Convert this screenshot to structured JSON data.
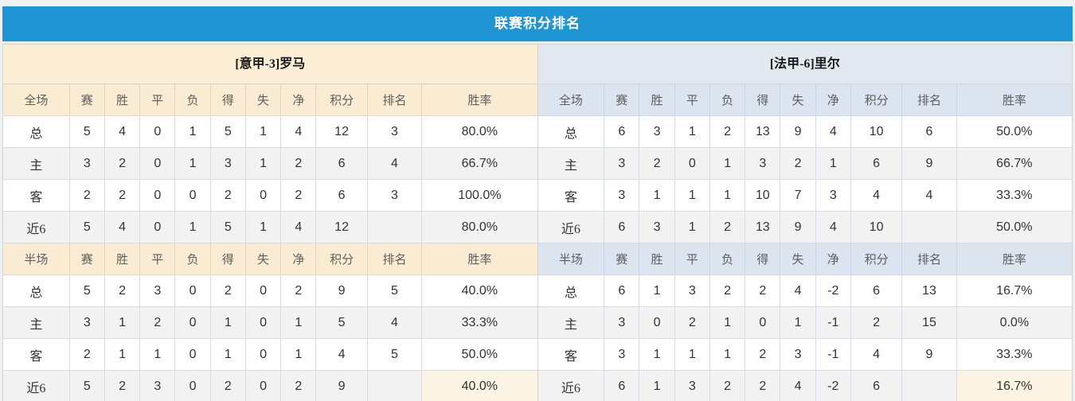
{
  "header": {
    "title": "联赛积分排名"
  },
  "columns": {
    "stats": [
      "赛",
      "胜",
      "平",
      "负",
      "得",
      "失",
      "净"
    ],
    "points": "积分",
    "rank": "排名",
    "rate": "胜率"
  },
  "teams": [
    {
      "name": "[意甲-3]罗马",
      "theme": "cream",
      "sections": [
        {
          "scope": "全场",
          "rows": [
            {
              "label": "总",
              "label_style": "dark",
              "stats": [
                5,
                4,
                0,
                1,
                5,
                1,
                4
              ],
              "points": 12,
              "rank": 3,
              "rate": "80.0%"
            },
            {
              "label": "主",
              "label_style": "red",
              "stats": [
                3,
                2,
                0,
                1,
                3,
                1,
                2
              ],
              "points": 6,
              "rank": 4,
              "rate": "66.7%"
            },
            {
              "label": "客",
              "label_style": "blue",
              "stats": [
                2,
                2,
                0,
                0,
                2,
                0,
                2
              ],
              "points": 6,
              "rank": 3,
              "rate": "100.0%"
            },
            {
              "label": "近6",
              "label_style": "dark",
              "stats": [
                5,
                4,
                0,
                1,
                5,
                1,
                4
              ],
              "points": 12,
              "rank": "",
              "rate": "80.0%"
            }
          ]
        },
        {
          "scope": "半场",
          "rows": [
            {
              "label": "总",
              "label_style": "dark",
              "stats": [
                5,
                2,
                3,
                0,
                2,
                0,
                2
              ],
              "points": 9,
              "rank": 5,
              "rate": "40.0%"
            },
            {
              "label": "主",
              "label_style": "red",
              "stats": [
                3,
                1,
                2,
                0,
                1,
                0,
                1
              ],
              "points": 5,
              "rank": 4,
              "rate": "33.3%"
            },
            {
              "label": "客",
              "label_style": "blue",
              "stats": [
                2,
                1,
                1,
                0,
                1,
                0,
                1
              ],
              "points": 4,
              "rank": 5,
              "rate": "50.0%"
            },
            {
              "label": "近6",
              "label_style": "dark",
              "stats": [
                5,
                2,
                3,
                0,
                2,
                0,
                2
              ],
              "points": 9,
              "rank": "",
              "rate": "40.0%"
            }
          ]
        }
      ]
    },
    {
      "name": "[法甲-6]里尔",
      "theme": "blue",
      "sections": [
        {
          "scope": "全场",
          "rows": [
            {
              "label": "总",
              "label_style": "dark",
              "stats": [
                6,
                3,
                1,
                2,
                13,
                9,
                4
              ],
              "points": 10,
              "rank": 6,
              "rate": "50.0%"
            },
            {
              "label": "主",
              "label_style": "red",
              "stats": [
                3,
                2,
                0,
                1,
                3,
                2,
                1
              ],
              "points": 6,
              "rank": 9,
              "rate": "66.7%"
            },
            {
              "label": "客",
              "label_style": "blue",
              "stats": [
                3,
                1,
                1,
                1,
                10,
                7,
                3
              ],
              "points": 4,
              "rank": 4,
              "rate": "33.3%"
            },
            {
              "label": "近6",
              "label_style": "dark",
              "stats": [
                6,
                3,
                1,
                2,
                13,
                9,
                4
              ],
              "points": 10,
              "rank": "",
              "rate": "50.0%"
            }
          ]
        },
        {
          "scope": "半场",
          "rows": [
            {
              "label": "总",
              "label_style": "dark",
              "stats": [
                6,
                1,
                3,
                2,
                2,
                4,
                -2
              ],
              "points": 6,
              "rank": 13,
              "rate": "16.7%"
            },
            {
              "label": "主",
              "label_style": "red",
              "stats": [
                3,
                0,
                2,
                1,
                0,
                1,
                -1
              ],
              "points": 2,
              "rank": 15,
              "rate": "0.0%"
            },
            {
              "label": "客",
              "label_style": "blue",
              "stats": [
                3,
                1,
                1,
                1,
                2,
                3,
                -1
              ],
              "points": 4,
              "rank": 9,
              "rate": "33.3%"
            },
            {
              "label": "近6",
              "label_style": "dark",
              "stats": [
                6,
                1,
                3,
                2,
                2,
                4,
                -2
              ],
              "points": 6,
              "rank": "",
              "rate": "16.7%"
            }
          ]
        }
      ]
    }
  ],
  "colors": {
    "header_bg": "#2095d3",
    "header_text": "#ffffff",
    "band_cream": "#fbeed4",
    "band_blue": "#e2e9f1",
    "head_cream": "#faecd2",
    "head_blue": "#dbe4ef",
    "row_alt": "#f2f2f2",
    "points_red": "#e8432b",
    "rank_blue": "#4a80c0",
    "label_red": "#e05050",
    "label_blue": "#5353cc",
    "rate_highlight": "#fbf3e3"
  }
}
